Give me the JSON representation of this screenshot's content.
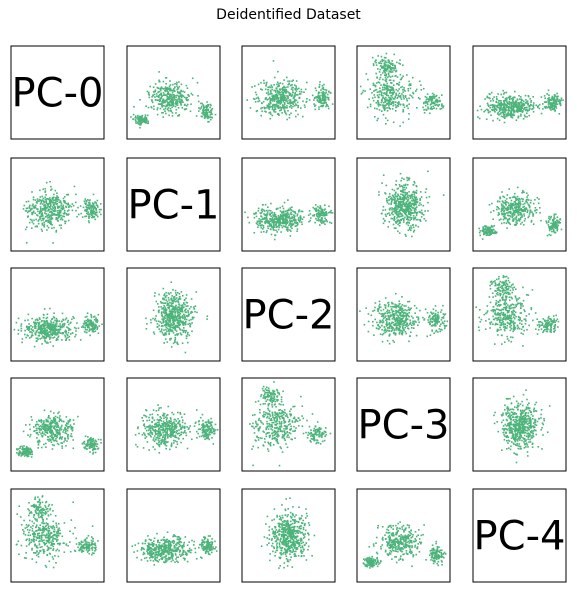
{
  "chart_data": {
    "type": "scatter",
    "title": "Deidentified Dataset",
    "layout": "pair-plot matrix, diagonal shows component label",
    "color": "#4cb37a",
    "components": [
      "PC-0",
      "PC-1",
      "PC-2",
      "PC-3",
      "PC-4"
    ],
    "axes_ticks": false
  }
}
